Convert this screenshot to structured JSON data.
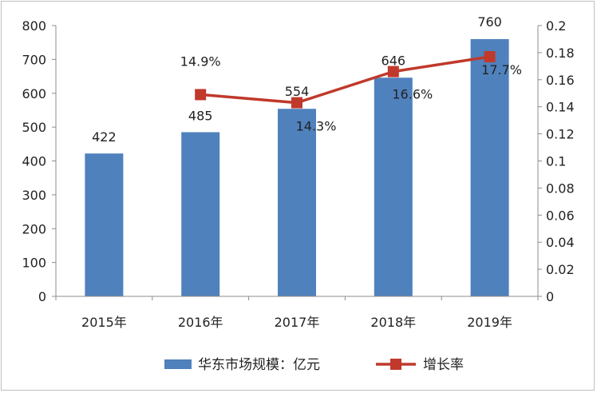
{
  "chart_data": {
    "type": "bar+line",
    "categories": [
      "2015年",
      "2016年",
      "2017年",
      "2018年",
      "2019年"
    ],
    "series": [
      {
        "name": "华东市场规模：亿元",
        "type": "bar",
        "axis": "left",
        "color": "#4f81bd",
        "values": [
          422,
          485,
          554,
          646,
          760
        ],
        "labels": [
          "422",
          "485",
          "554",
          "646",
          "760"
        ]
      },
      {
        "name": "增长率",
        "type": "line",
        "axis": "right",
        "color": "#c0392b",
        "values": [
          null,
          0.149,
          0.143,
          0.166,
          0.177
        ],
        "labels": [
          null,
          "14.9%",
          "14.3%",
          "16.6%",
          "17.7%"
        ]
      }
    ],
    "y_left": {
      "lim": [
        0,
        800
      ],
      "ticks": [
        0,
        100,
        200,
        300,
        400,
        500,
        600,
        700,
        800
      ],
      "tick_labels": [
        "0",
        "100",
        "200",
        "300",
        "400",
        "500",
        "600",
        "700",
        "800"
      ]
    },
    "y_right": {
      "lim": [
        0,
        0.2
      ],
      "ticks": [
        0,
        0.02,
        0.04,
        0.06,
        0.08,
        0.1,
        0.12,
        0.14,
        0.16,
        0.18,
        0.2
      ],
      "tick_labels": [
        "0",
        "0.02",
        "0.04",
        "0.06",
        "0.08",
        "0.1",
        "0.12",
        "0.14",
        "0.16",
        "0.18",
        "0.2"
      ]
    },
    "grid": false,
    "legend_position": "bottom"
  }
}
